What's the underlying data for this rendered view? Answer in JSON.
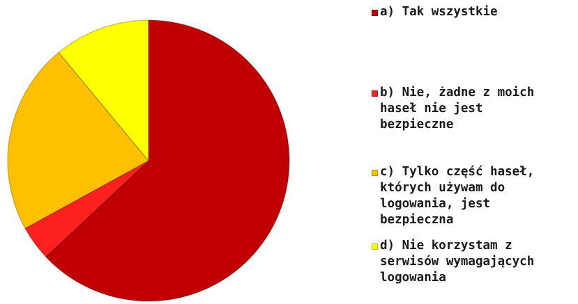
{
  "chart_data": {
    "type": "pie",
    "start": "12 o'clock, clockwise",
    "labels": [
      "a) Tak wszystkie",
      "b) Nie, żadne z moich haseł nie jest bezpieczne",
      "c) Tylko część haseł, których używam do logowania, jest bezpieczna",
      "d) Nie korzystam z serwisów wymagających logowania"
    ],
    "values": [
      63,
      4,
      22,
      11
    ],
    "unit": "%",
    "colors": [
      "#c00000",
      "#ff2020",
      "#ffc000",
      "#ffff00"
    ],
    "legend_position": "right",
    "legend": [
      {
        "label": "a) Tak wszystkie",
        "color": "#c00000"
      },
      {
        "label": "b) Nie, żadne z moich\nhaseł nie jest\nbezpieczne",
        "color": "#ff2020"
      },
      {
        "label": "c) Tylko część haseł,\nktórych używam do\nlogowania, jest\nbezpieczna",
        "color": "#ffc000"
      },
      {
        "label": "d) Nie korzystam z\nserwisów wymagających\nlogowania",
        "color": "#ffff00"
      }
    ]
  }
}
